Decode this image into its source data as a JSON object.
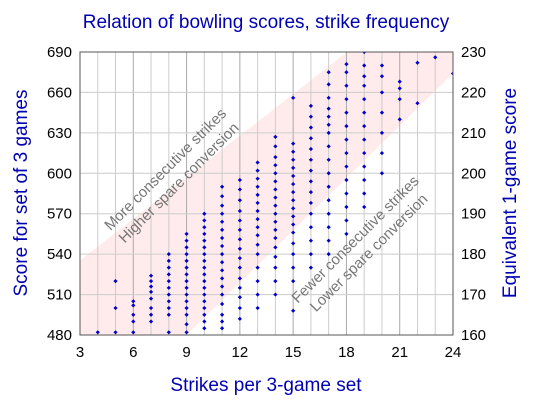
{
  "chart_data": {
    "type": "scatter",
    "title": "Relation of bowling scores, strike frequency",
    "xlabel": "Strikes per 3-game set",
    "ylabel": "Score for set of 3 games",
    "y2label": "Equivalent 1-game score",
    "xlim": [
      3,
      24
    ],
    "ylim": [
      480,
      690
    ],
    "y2lim": [
      160,
      230
    ],
    "x_ticks": [
      3,
      6,
      9,
      12,
      15,
      18,
      21,
      24
    ],
    "y_ticks": [
      480,
      510,
      540,
      570,
      600,
      630,
      660,
      690
    ],
    "y2_ticks": [
      160,
      170,
      180,
      190,
      200,
      210,
      220,
      230
    ],
    "grid": true,
    "band_color": "#ffe4e4",
    "point_color": "#0000cc",
    "annotations": [
      {
        "lines": [
          "More consecutive strikes",
          "Higher spare conversion"
        ],
        "region": "upper-left"
      },
      {
        "lines": [
          "Fewer consecutive strikes",
          "Lower spare conversion"
        ],
        "region": "lower-right"
      }
    ],
    "columns": [
      {
        "x": 4,
        "y": [
          482
        ]
      },
      {
        "x": 5,
        "y": [
          482,
          500,
          520
        ]
      },
      {
        "x": 6,
        "y": [
          482,
          490,
          495,
          502,
          505
        ]
      },
      {
        "x": 7,
        "y": [
          490,
          495,
          500,
          507,
          512,
          516,
          520,
          524
        ]
      },
      {
        "x": 8,
        "y": [
          482,
          495,
          500,
          505,
          510,
          515,
          520,
          525,
          530,
          535,
          540
        ]
      },
      {
        "x": 9,
        "y": [
          482,
          488,
          495,
          500,
          505,
          510,
          515,
          520,
          525,
          530,
          535,
          540,
          545,
          550,
          555
        ]
      },
      {
        "x": 10,
        "y": [
          485,
          490,
          495,
          500,
          505,
          510,
          515,
          520,
          525,
          530,
          535,
          540,
          545,
          550,
          555,
          560,
          565,
          570
        ]
      },
      {
        "x": 11,
        "y": [
          485,
          490,
          495,
          503,
          510,
          516,
          522,
          528,
          534,
          540,
          546,
          552,
          558,
          564,
          570,
          576,
          583,
          590
        ]
      },
      {
        "x": 12,
        "y": [
          492,
          500,
          508,
          515,
          522,
          530,
          537,
          544,
          551,
          558,
          565,
          572,
          580,
          588,
          595
        ]
      },
      {
        "x": 13,
        "y": [
          500,
          510,
          520,
          530,
          540,
          547,
          554,
          560,
          566,
          572,
          578,
          584,
          590,
          596,
          602,
          608
        ]
      },
      {
        "x": 14,
        "y": [
          510,
          520,
          530,
          538,
          545,
          552,
          558,
          564,
          570,
          576,
          582,
          588,
          594,
          600,
          606,
          612,
          620,
          627
        ]
      },
      {
        "x": 15,
        "y": [
          498,
          520,
          530,
          540,
          548,
          556,
          562,
          568,
          574,
          580,
          586,
          592,
          598,
          604,
          610,
          616,
          622,
          656
        ]
      },
      {
        "x": 16,
        "y": [
          530,
          540,
          550,
          560,
          570,
          578,
          586,
          594,
          602,
          610,
          618,
          626,
          634,
          642,
          650
        ]
      },
      {
        "x": 17,
        "y": [
          540,
          550,
          560,
          570,
          580,
          590,
          600,
          610,
          620,
          630,
          636,
          642,
          648,
          656,
          666,
          675
        ]
      },
      {
        "x": 18,
        "y": [
          555,
          565,
          575,
          585,
          595,
          605,
          615,
          625,
          635,
          645,
          655,
          665,
          675,
          681
        ]
      },
      {
        "x": 19,
        "y": [
          575,
          585,
          595,
          605,
          615,
          625,
          635,
          645,
          655,
          665,
          672,
          680,
          690
        ]
      },
      {
        "x": 20,
        "y": [
          600,
          615,
          630,
          645,
          660,
          672,
          680
        ]
      },
      {
        "x": 21,
        "y": [
          640,
          655,
          663,
          668
        ]
      },
      {
        "x": 22,
        "y": [
          652,
          682
        ]
      },
      {
        "x": 23,
        "y": [
          686
        ]
      },
      {
        "x": 24,
        "y": [
          674
        ]
      }
    ]
  }
}
